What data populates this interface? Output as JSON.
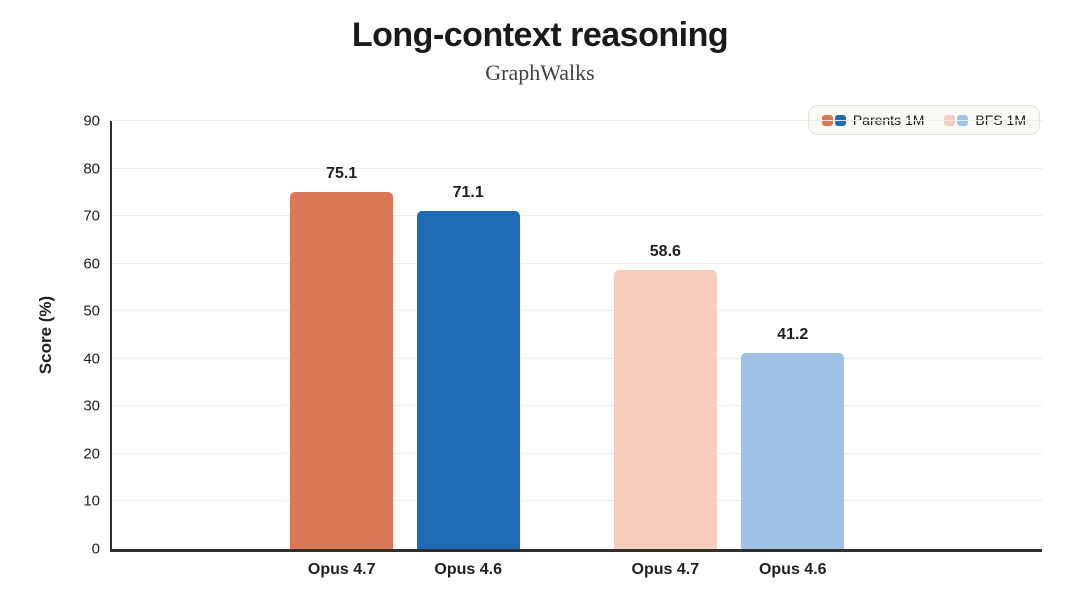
{
  "header": {
    "title": "Long-context reasoning",
    "subtitle": "GraphWalks"
  },
  "chart_data": {
    "type": "bar",
    "title": "Long-context reasoning",
    "subtitle": "GraphWalks",
    "xlabel": "",
    "ylabel": "Score (%)",
    "ylim": [
      0,
      90
    ],
    "yticks": [
      0,
      10,
      20,
      30,
      40,
      50,
      60,
      70,
      80,
      90
    ],
    "grid": "horizontal",
    "categories": [
      "Opus 4.7",
      "Opus 4.6",
      "Opus 4.7",
      "Opus 4.6"
    ],
    "series_membership": [
      "Parents 1M",
      "Parents 1M",
      "BFS 1M",
      "BFS 1M"
    ],
    "values": [
      75.1,
      71.1,
      58.6,
      41.2
    ],
    "value_labels": [
      "75.1",
      "71.1",
      "58.6",
      "41.2"
    ],
    "bar_colors": [
      "#D97757",
      "#1F6BB5",
      "#F6CDBC",
      "#9DC2E6"
    ],
    "legend": {
      "position": "top-right",
      "entries": [
        {
          "label": "Parents 1M",
          "colors": [
            "#D97757",
            "#1F6BB5"
          ]
        },
        {
          "label": "BFS 1M",
          "colors": [
            "#F6CDBC",
            "#9DC2E6"
          ]
        }
      ]
    }
  },
  "colors": {
    "background": "#FFFFFF",
    "title": "#1A1A18",
    "subtitle": "#42423E",
    "text": "#1F1F1D",
    "axis": "#2F2F2B",
    "grid": "#ECECE8",
    "legend_bg": "#FBFAF7",
    "legend_border": "#E6E3DA"
  }
}
